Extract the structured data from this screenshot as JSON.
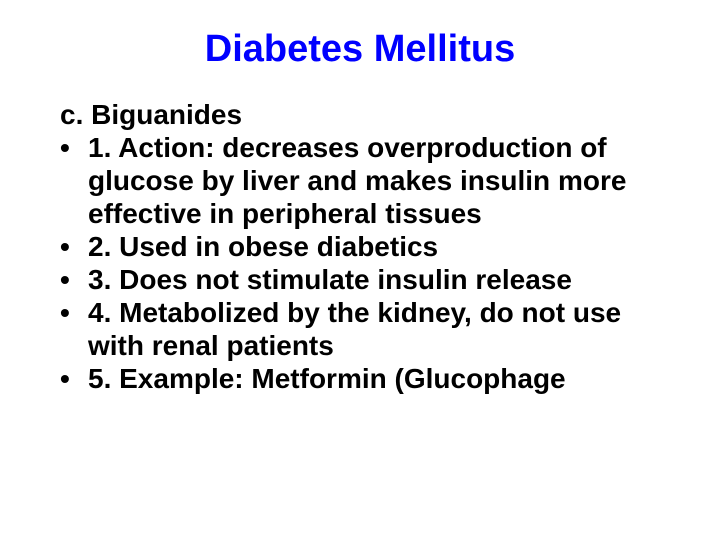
{
  "title": {
    "text": "Diabetes Mellitus",
    "color": "#0000ff",
    "fontsize": 38
  },
  "subheading": {
    "text": "c. Biguanides",
    "color": "#000000",
    "fontsize": 28,
    "padding_left": 30
  },
  "bullets": {
    "fontsize": 28,
    "color": "#000000",
    "line_height": 1.18,
    "items": [
      "1.  Action: decreases overproduction of glucose by liver and makes insulin more effective in peripheral tissues",
      "2.  Used in obese diabetics",
      "3. Does not stimulate insulin release",
      "4.  Metabolized by the kidney, do not use with renal patients",
      "5.  Example: Metformin (Glucophage"
    ]
  },
  "background_color": "#ffffff"
}
